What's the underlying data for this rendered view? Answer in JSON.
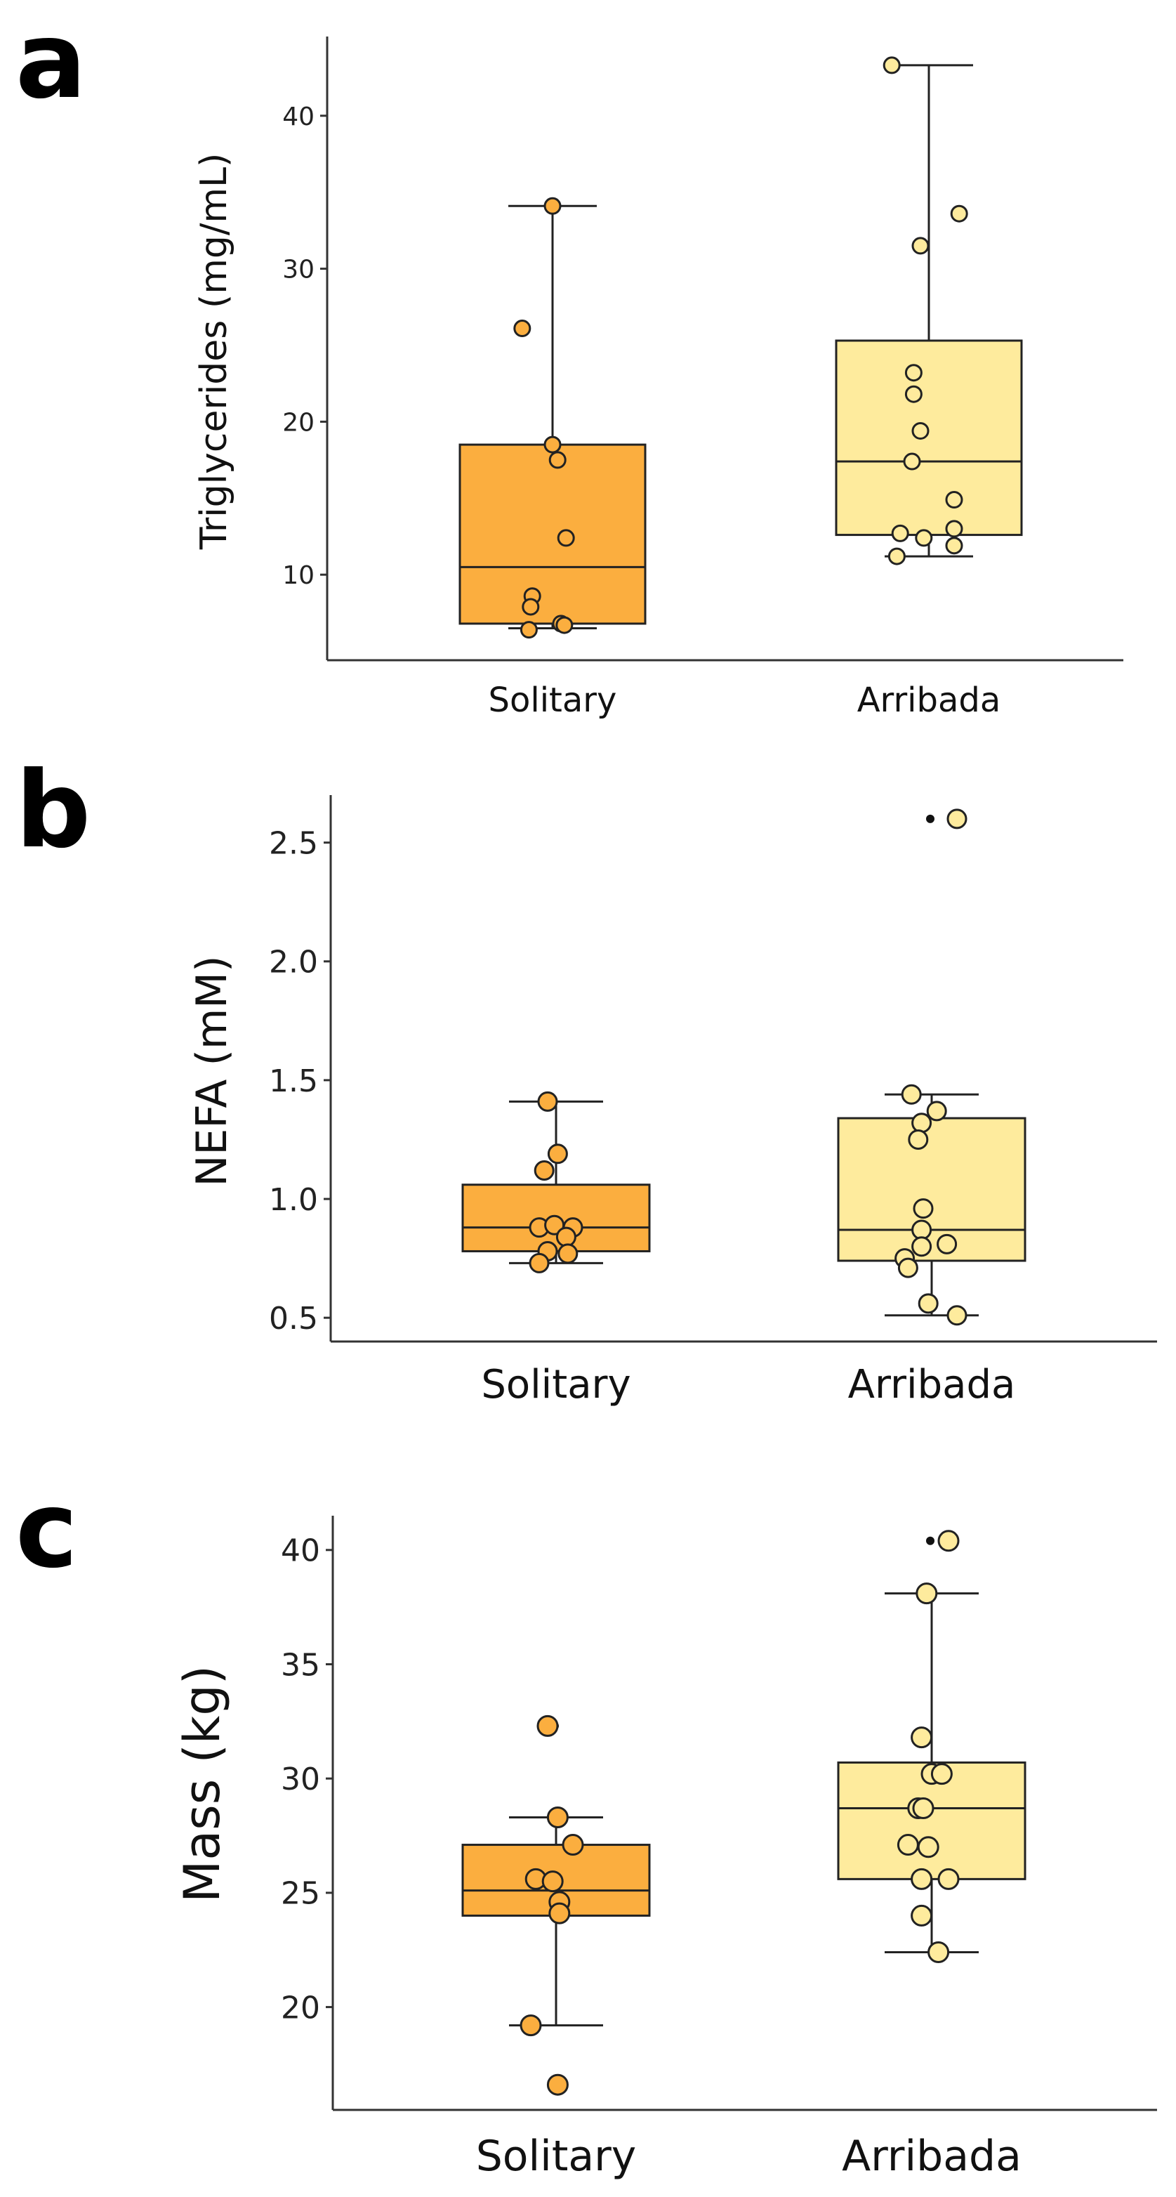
{
  "colors": {
    "solitary_fill": "#FBAE3F",
    "arribada_fill": "#FEEB9D",
    "stroke": "#222222",
    "axis": "#333333"
  },
  "chart_data": [
    {
      "panel_label": "a",
      "type": "box",
      "ylabel": "Triglycerides (mg/mL)",
      "categories": [
        "Solitary",
        "Arribada"
      ],
      "ylim": [
        4.5,
        45.5
      ],
      "yticks": [
        10,
        20,
        30,
        40
      ],
      "boxes": [
        {
          "category": "Solitary",
          "whisker_low": 6.5,
          "q1": 6.8,
          "median": 10.5,
          "q3": 18.5,
          "whisker_high": 34.1,
          "outliers": [],
          "points": [
            {
              "jitter": 0.0,
              "y": 34.1
            },
            {
              "jitter": -0.18,
              "y": 26.1
            },
            {
              "jitter": 0.0,
              "y": 18.5
            },
            {
              "jitter": 0.03,
              "y": 17.5
            },
            {
              "jitter": 0.08,
              "y": 12.4
            },
            {
              "jitter": -0.12,
              "y": 8.6
            },
            {
              "jitter": -0.13,
              "y": 7.9
            },
            {
              "jitter": 0.05,
              "y": 6.8
            },
            {
              "jitter": 0.07,
              "y": 6.7
            },
            {
              "jitter": -0.14,
              "y": 6.4
            }
          ]
        },
        {
          "category": "Arribada",
          "whisker_low": 11.2,
          "q1": 12.6,
          "median": 17.4,
          "q3": 25.3,
          "whisker_high": 43.3,
          "outliers": [],
          "points": [
            {
              "jitter": -0.22,
              "y": 43.3
            },
            {
              "jitter": 0.18,
              "y": 33.6
            },
            {
              "jitter": -0.05,
              "y": 31.5
            },
            {
              "jitter": -0.09,
              "y": 23.2
            },
            {
              "jitter": -0.09,
              "y": 21.8
            },
            {
              "jitter": -0.05,
              "y": 19.4
            },
            {
              "jitter": -0.1,
              "y": 17.4
            },
            {
              "jitter": 0.15,
              "y": 14.9
            },
            {
              "jitter": 0.15,
              "y": 13.0
            },
            {
              "jitter": -0.17,
              "y": 12.7
            },
            {
              "jitter": -0.03,
              "y": 12.4
            },
            {
              "jitter": 0.15,
              "y": 11.9
            },
            {
              "jitter": -0.19,
              "y": 11.2
            }
          ]
        }
      ]
    },
    {
      "panel_label": "b",
      "type": "box",
      "ylabel": "NEFA (mM)",
      "categories": [
        "Solitary",
        "Arribada"
      ],
      "ylim": [
        0.4,
        2.7
      ],
      "yticks": [
        0.5,
        1.0,
        1.5,
        2.0,
        2.5
      ],
      "ytick_labels": [
        "0.5",
        "1.0",
        "1.5",
        "2.0",
        "2.5"
      ],
      "boxes": [
        {
          "category": "Solitary",
          "whisker_low": 0.73,
          "q1": 0.78,
          "median": 0.88,
          "q3": 1.06,
          "whisker_high": 1.41,
          "outliers": [],
          "points": [
            {
              "jitter": -0.05,
              "y": 1.41
            },
            {
              "jitter": 0.01,
              "y": 1.19
            },
            {
              "jitter": -0.07,
              "y": 1.12
            },
            {
              "jitter": -0.1,
              "y": 0.88
            },
            {
              "jitter": -0.01,
              "y": 0.89
            },
            {
              "jitter": 0.1,
              "y": 0.88
            },
            {
              "jitter": 0.06,
              "y": 0.84
            },
            {
              "jitter": -0.05,
              "y": 0.78
            },
            {
              "jitter": 0.07,
              "y": 0.77
            },
            {
              "jitter": -0.1,
              "y": 0.73
            }
          ]
        },
        {
          "category": "Arribada",
          "whisker_low": 0.51,
          "q1": 0.74,
          "median": 0.87,
          "q3": 1.34,
          "whisker_high": 1.44,
          "outliers": [
            2.6
          ],
          "points": [
            {
              "jitter": 0.15,
              "y": 2.6
            },
            {
              "jitter": -0.12,
              "y": 1.44
            },
            {
              "jitter": 0.03,
              "y": 1.37
            },
            {
              "jitter": -0.06,
              "y": 1.32
            },
            {
              "jitter": -0.08,
              "y": 1.25
            },
            {
              "jitter": -0.05,
              "y": 0.96
            },
            {
              "jitter": -0.06,
              "y": 0.87
            },
            {
              "jitter": 0.09,
              "y": 0.81
            },
            {
              "jitter": -0.06,
              "y": 0.8
            },
            {
              "jitter": -0.16,
              "y": 0.75
            },
            {
              "jitter": -0.14,
              "y": 0.71
            },
            {
              "jitter": -0.02,
              "y": 0.56
            },
            {
              "jitter": 0.15,
              "y": 0.51
            }
          ]
        }
      ]
    },
    {
      "panel_label": "c",
      "type": "box",
      "ylabel": "Mass (kg)",
      "categories": [
        "Solitary",
        "Arribada"
      ],
      "ylim": [
        15.5,
        41.5
      ],
      "yticks": [
        20,
        25,
        30,
        35,
        40
      ],
      "boxes": [
        {
          "category": "Solitary",
          "whisker_low": 19.2,
          "q1": 24.0,
          "median": 25.1,
          "q3": 27.1,
          "whisker_high": 28.3,
          "outliers": [
            32.3
          ],
          "points": [
            {
              "jitter": -0.05,
              "y": 32.3
            },
            {
              "jitter": 0.01,
              "y": 28.3
            },
            {
              "jitter": 0.1,
              "y": 27.1
            },
            {
              "jitter": -0.12,
              "y": 25.6
            },
            {
              "jitter": -0.02,
              "y": 25.5
            },
            {
              "jitter": 0.02,
              "y": 24.6
            },
            {
              "jitter": 0.02,
              "y": 24.1
            },
            {
              "jitter": -0.15,
              "y": 19.2
            },
            {
              "jitter": 0.01,
              "y": 16.6
            }
          ]
        },
        {
          "category": "Arribada",
          "whisker_low": 22.4,
          "q1": 25.6,
          "median": 28.7,
          "q3": 30.7,
          "whisker_high": 38.1,
          "outliers": [
            40.4
          ],
          "points": [
            {
              "jitter": 0.1,
              "y": 40.4
            },
            {
              "jitter": -0.03,
              "y": 38.1
            },
            {
              "jitter": -0.06,
              "y": 31.8
            },
            {
              "jitter": 0.0,
              "y": 30.2
            },
            {
              "jitter": 0.06,
              "y": 30.2
            },
            {
              "jitter": -0.08,
              "y": 28.7
            },
            {
              "jitter": -0.05,
              "y": 28.7
            },
            {
              "jitter": -0.14,
              "y": 27.1
            },
            {
              "jitter": -0.02,
              "y": 27.0
            },
            {
              "jitter": -0.06,
              "y": 25.6
            },
            {
              "jitter": 0.1,
              "y": 25.6
            },
            {
              "jitter": -0.06,
              "y": 24.0
            },
            {
              "jitter": 0.04,
              "y": 22.4
            }
          ]
        }
      ]
    }
  ]
}
